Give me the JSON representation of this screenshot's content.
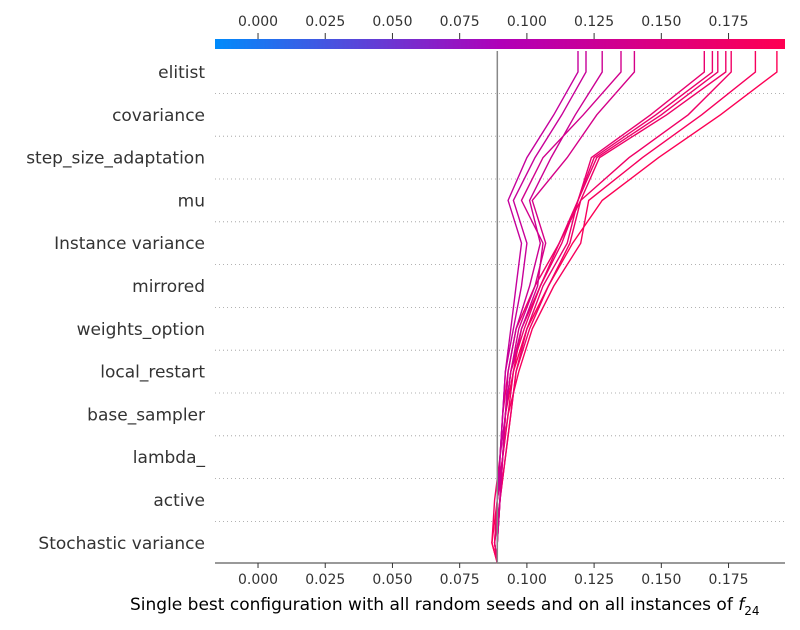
{
  "chart_data": {
    "type": "line",
    "title": "",
    "xlabel": "Single best configuration with all random seeds and on all instances of ",
    "xlabel_math": "f",
    "xlabel_sub": "24",
    "ylabel": "",
    "features": [
      "elitist",
      "covariance",
      "step_size_adaptation",
      "mu",
      "Instance variance",
      "mirrored",
      "weights_option",
      "local_restart",
      "base_sampler",
      "lambda_",
      "active",
      "Stochastic variance"
    ],
    "xlim": [
      -0.016,
      0.196
    ],
    "xticks": [
      0.0,
      0.025,
      0.05,
      0.075,
      0.1,
      0.125,
      0.15,
      0.175
    ],
    "xtick_labels": [
      "0.000",
      "0.025",
      "0.050",
      "0.075",
      "0.100",
      "0.125",
      "0.150",
      "0.175"
    ],
    "base_value": 0.089,
    "colormap": [
      "#008bfb",
      "#ff0052"
    ],
    "base_line_color": "#888888",
    "grid": "dotted gray lines between feature rows",
    "series": [
      {
        "values": [
          0.087,
          0.088,
          0.09,
          0.091,
          0.093,
          0.096,
          0.103,
          0.112,
          0.12,
          0.138,
          0.16,
          0.176
        ]
      },
      {
        "values": [
          0.087,
          0.089,
          0.091,
          0.092,
          0.095,
          0.1,
          0.108,
          0.117,
          0.128,
          0.149,
          0.172,
          0.193
        ]
      },
      {
        "values": [
          0.088,
          0.089,
          0.091,
          0.093,
          0.097,
          0.102,
          0.11,
          0.12,
          0.123,
          0.143,
          0.165,
          0.185
        ]
      },
      {
        "values": [
          0.088,
          0.09,
          0.092,
          0.094,
          0.096,
          0.1,
          0.106,
          0.115,
          0.119,
          0.124,
          0.146,
          0.166
        ]
      },
      {
        "values": [
          0.088,
          0.09,
          0.091,
          0.093,
          0.095,
          0.098,
          0.105,
          0.113,
          0.119,
          0.126,
          0.15,
          0.171
        ]
      },
      {
        "values": [
          0.088,
          0.089,
          0.091,
          0.092,
          0.094,
          0.099,
          0.105,
          0.112,
          0.119,
          0.125,
          0.148,
          0.169
        ]
      },
      {
        "values": [
          0.089,
          0.09,
          0.092,
          0.094,
          0.096,
          0.101,
          0.108,
          0.116,
          0.12,
          0.127,
          0.152,
          0.174
        ]
      },
      {
        "values": [
          0.089,
          0.089,
          0.09,
          0.091,
          0.092,
          0.094,
          0.096,
          0.098,
          0.093,
          0.1,
          0.11,
          0.119
        ]
      },
      {
        "values": [
          0.089,
          0.089,
          0.09,
          0.091,
          0.092,
          0.095,
          0.098,
          0.1,
          0.095,
          0.103,
          0.113,
          0.122
        ]
      },
      {
        "values": [
          0.089,
          0.09,
          0.09,
          0.092,
          0.093,
          0.096,
          0.101,
          0.105,
          0.101,
          0.109,
          0.118,
          0.128
        ]
      },
      {
        "values": [
          0.089,
          0.09,
          0.091,
          0.092,
          0.094,
          0.098,
          0.104,
          0.106,
          0.098,
          0.106,
          0.121,
          0.135
        ]
      },
      {
        "values": [
          0.089,
          0.09,
          0.091,
          0.092,
          0.094,
          0.097,
          0.103,
          0.107,
          0.102,
          0.115,
          0.126,
          0.14
        ]
      }
    ]
  }
}
